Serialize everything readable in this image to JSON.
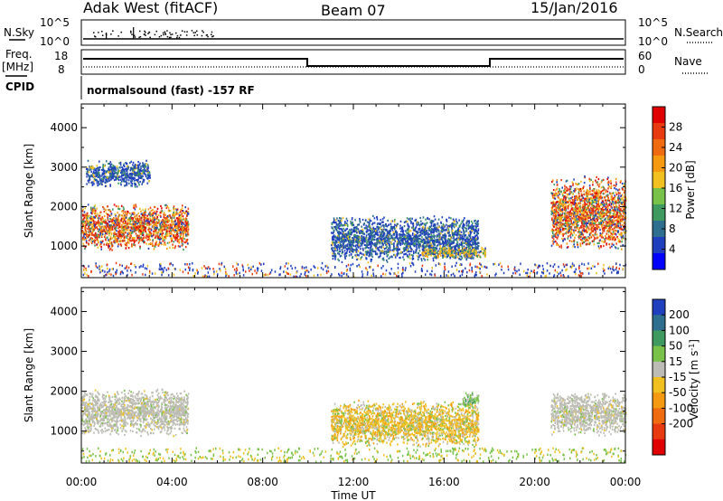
{
  "header": {
    "station": "Adak West (fitACF)",
    "beam": "Beam 07",
    "date": "15/Jan/2016"
  },
  "status_panels": {
    "nsky_label": "N.Sky",
    "nsky_ticks": [
      "10^5",
      "10^0"
    ],
    "nsearch_label": "N.Search",
    "nsearch_ticks": [
      "10^5",
      "10^0"
    ],
    "freq_label_1": "Freq.",
    "freq_label_2": "[MHz]",
    "freq_ticks": [
      "18",
      "8"
    ],
    "nave_label": "Nave",
    "nave_ticks": [
      "60",
      "0"
    ],
    "cpid_label": "CPID",
    "cpid_text": "normalsound (fast) -157 RF"
  },
  "colors": {
    "power_scale": [
      "#0000ff",
      "#1f3fbf",
      "#2e6f8f",
      "#3f9a5f",
      "#79c24a",
      "#f0c020",
      "#f59a10",
      "#f06a10",
      "#e83a10",
      "#e00000"
    ],
    "velocity_scale": [
      "#1f3fbf",
      "#2e6f8f",
      "#3f9a5f",
      "#79c24a",
      "#bcbcb4",
      "#f0c020",
      "#f59a10",
      "#f06a10",
      "#e83a10",
      "#e00000"
    ]
  },
  "chart_data": [
    {
      "type": "heatmap",
      "ylabel": "Slant Range [km]",
      "xlabel": "",
      "y_ticks": [
        "1000",
        "2000",
        "3000",
        "4000"
      ],
      "ylim": [
        200,
        4600
      ],
      "x_ticks": [
        "00:00",
        "04:00",
        "08:00",
        "12:00",
        "16:00",
        "20:00",
        "00:00"
      ],
      "xlim_hours": [
        0,
        24
      ],
      "colorbar": {
        "label": "Power [dB]",
        "ticks": [
          "4",
          "8",
          "12",
          "16",
          "20",
          "24",
          "28"
        ]
      },
      "regions": [
        {
          "t_start": 0.0,
          "t_end": 4.7,
          "r_low": 900,
          "r_high": 2100,
          "level": "high"
        },
        {
          "t_start": 0.2,
          "t_end": 3.0,
          "r_low": 2500,
          "r_high": 3200,
          "level": "low"
        },
        {
          "t_start": 11.0,
          "t_end": 17.5,
          "r_low": 600,
          "r_high": 1800,
          "level": "low"
        },
        {
          "t_start": 15.0,
          "t_end": 17.8,
          "r_low": 700,
          "r_high": 1000,
          "level": "mid"
        },
        {
          "t_start": 20.7,
          "t_end": 24.0,
          "r_low": 900,
          "r_high": 2800,
          "level": "high"
        }
      ]
    },
    {
      "type": "heatmap",
      "ylabel": "Slant Range [km]",
      "xlabel": "Time UT",
      "y_ticks": [
        "1000",
        "2000",
        "3000",
        "4000"
      ],
      "ylim": [
        200,
        4600
      ],
      "x_ticks": [
        "00:00",
        "04:00",
        "08:00",
        "12:00",
        "16:00",
        "20:00",
        "00:00"
      ],
      "xlim_hours": [
        0,
        24
      ],
      "colorbar": {
        "label": "Velocity [m s^-1]",
        "ticks": [
          "200",
          "100",
          "50",
          "15",
          "-15",
          "-50",
          "-100",
          "-200"
        ]
      },
      "regions": [
        {
          "t_start": 0.0,
          "t_end": 4.7,
          "r_low": 900,
          "r_high": 2100,
          "level": "ground"
        },
        {
          "t_start": 11.0,
          "t_end": 17.5,
          "r_low": 600,
          "r_high": 1800,
          "level": "away"
        },
        {
          "t_start": 16.8,
          "t_end": 17.5,
          "r_low": 1600,
          "r_high": 2000,
          "level": "toward"
        },
        {
          "t_start": 20.7,
          "t_end": 24.0,
          "r_low": 900,
          "r_high": 2000,
          "level": "ground"
        }
      ]
    }
  ]
}
